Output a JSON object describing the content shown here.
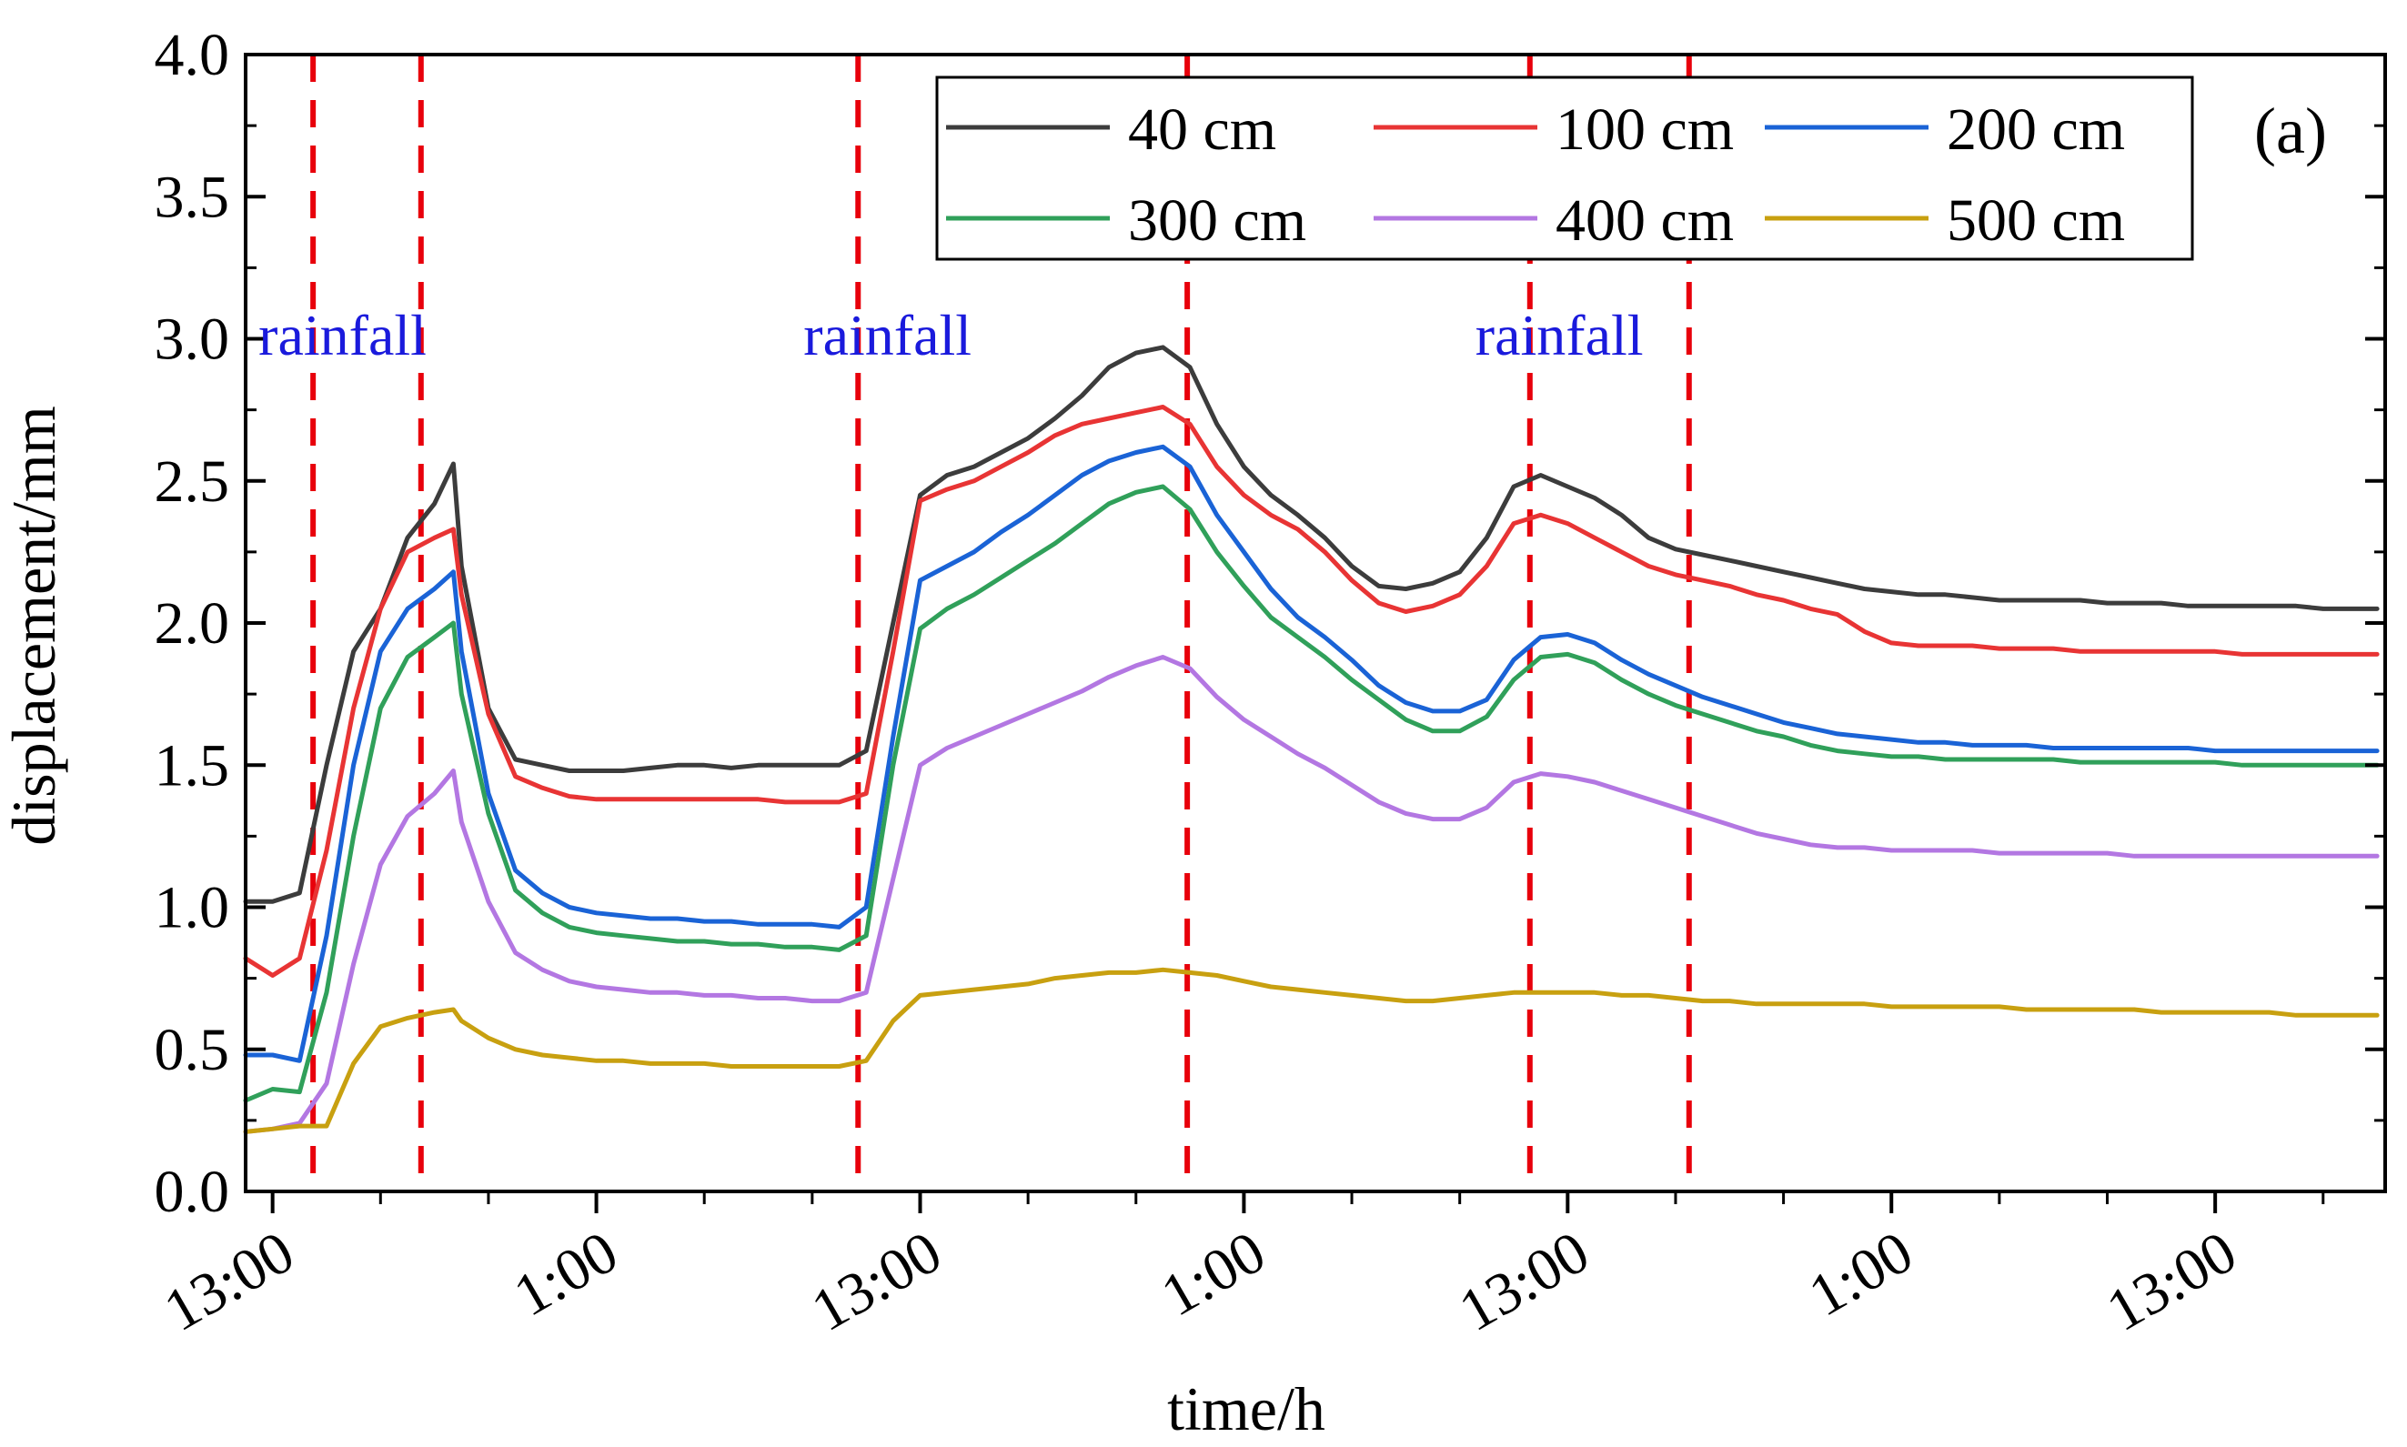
{
  "chart_data": {
    "type": "line",
    "panel_label": "(a)",
    "xlabel": "time/h",
    "ylabel": "displacement/mm",
    "xlim_hours": [
      0,
      79.3
    ],
    "ylim": [
      0,
      4.0
    ],
    "y_ticks": [
      0.0,
      0.5,
      1.0,
      1.5,
      2.0,
      2.5,
      3.0,
      3.5,
      4.0
    ],
    "y_tick_labels": [
      "0.0",
      "0.5",
      "1.0",
      "1.5",
      "2.0",
      "2.5",
      "3.0",
      "3.5",
      "4.0"
    ],
    "x_ticks": [
      {
        "hour": 1,
        "label": "13:00"
      },
      {
        "hour": 13,
        "label": "1:00"
      },
      {
        "hour": 25,
        "label": "13:00"
      },
      {
        "hour": 37,
        "label": "1:00"
      },
      {
        "hour": 49,
        "label": "13:00"
      },
      {
        "hour": 61,
        "label": "1:00"
      },
      {
        "hour": 73,
        "label": "13:00"
      }
    ],
    "minor_tick_interval_hours": 4,
    "rainfall_periods": [
      {
        "label": "rainfall",
        "start": 2.5,
        "end": 6.5
      },
      {
        "label": "rainfall",
        "start": 22.7,
        "end": 34.9
      },
      {
        "label": "rainfall",
        "start": 47.6,
        "end": 53.5
      }
    ],
    "colors": {
      "rain_line": "#e8000b",
      "rain_text": "#1a1adc",
      "axis": "#000000"
    },
    "x": [
      0,
      1,
      2,
      3,
      4,
      5,
      6,
      7,
      7.7,
      8,
      9,
      10,
      11,
      12,
      13,
      14,
      15,
      16,
      17,
      18,
      19,
      20,
      21,
      22,
      23,
      24,
      25,
      26,
      27,
      28,
      29,
      30,
      31,
      32,
      33,
      34,
      35,
      36,
      37,
      38,
      39,
      40,
      41,
      42,
      43,
      44,
      45,
      46,
      47,
      48,
      49,
      50,
      51,
      52,
      53,
      54,
      55,
      56,
      57,
      58,
      59,
      60,
      61,
      62,
      63,
      64,
      65,
      66,
      67,
      68,
      69,
      70,
      71,
      72,
      73,
      74,
      75,
      76,
      77,
      78,
      79
    ],
    "series": [
      {
        "name": "40 cm",
        "color": "#3c3c3c",
        "values": [
          1.02,
          1.02,
          1.05,
          1.5,
          1.9,
          2.05,
          2.3,
          2.42,
          2.56,
          2.2,
          1.7,
          1.52,
          1.5,
          1.48,
          1.48,
          1.48,
          1.49,
          1.5,
          1.5,
          1.49,
          1.5,
          1.5,
          1.5,
          1.5,
          1.55,
          2.0,
          2.45,
          2.52,
          2.55,
          2.6,
          2.65,
          2.72,
          2.8,
          2.9,
          2.95,
          2.97,
          2.9,
          2.7,
          2.55,
          2.45,
          2.38,
          2.3,
          2.2,
          2.13,
          2.12,
          2.14,
          2.18,
          2.3,
          2.48,
          2.52,
          2.48,
          2.44,
          2.38,
          2.3,
          2.26,
          2.24,
          2.22,
          2.2,
          2.18,
          2.16,
          2.14,
          2.12,
          2.11,
          2.1,
          2.1,
          2.09,
          2.08,
          2.08,
          2.08,
          2.08,
          2.07,
          2.07,
          2.07,
          2.06,
          2.06,
          2.06,
          2.06,
          2.06,
          2.05,
          2.05,
          2.05
        ]
      },
      {
        "name": "100 cm",
        "color": "#e83434",
        "values": [
          0.82,
          0.76,
          0.82,
          1.2,
          1.7,
          2.05,
          2.25,
          2.3,
          2.33,
          2.1,
          1.68,
          1.46,
          1.42,
          1.39,
          1.38,
          1.38,
          1.38,
          1.38,
          1.38,
          1.38,
          1.38,
          1.37,
          1.37,
          1.37,
          1.4,
          1.9,
          2.43,
          2.47,
          2.5,
          2.55,
          2.6,
          2.66,
          2.7,
          2.72,
          2.74,
          2.76,
          2.7,
          2.55,
          2.45,
          2.38,
          2.33,
          2.25,
          2.15,
          2.07,
          2.04,
          2.06,
          2.1,
          2.2,
          2.35,
          2.38,
          2.35,
          2.3,
          2.25,
          2.2,
          2.17,
          2.15,
          2.13,
          2.1,
          2.08,
          2.05,
          2.03,
          1.97,
          1.93,
          1.92,
          1.92,
          1.92,
          1.91,
          1.91,
          1.91,
          1.9,
          1.9,
          1.9,
          1.9,
          1.9,
          1.9,
          1.89,
          1.89,
          1.89,
          1.89,
          1.89,
          1.89
        ]
      },
      {
        "name": "200 cm",
        "color": "#1a63d6",
        "values": [
          0.48,
          0.48,
          0.46,
          0.9,
          1.5,
          1.9,
          2.05,
          2.12,
          2.18,
          1.9,
          1.4,
          1.13,
          1.05,
          1.0,
          0.98,
          0.97,
          0.96,
          0.96,
          0.95,
          0.95,
          0.94,
          0.94,
          0.94,
          0.93,
          1.0,
          1.6,
          2.15,
          2.2,
          2.25,
          2.32,
          2.38,
          2.45,
          2.52,
          2.57,
          2.6,
          2.62,
          2.55,
          2.38,
          2.25,
          2.12,
          2.02,
          1.95,
          1.87,
          1.78,
          1.72,
          1.69,
          1.69,
          1.73,
          1.87,
          1.95,
          1.96,
          1.93,
          1.87,
          1.82,
          1.78,
          1.74,
          1.71,
          1.68,
          1.65,
          1.63,
          1.61,
          1.6,
          1.59,
          1.58,
          1.58,
          1.57,
          1.57,
          1.57,
          1.56,
          1.56,
          1.56,
          1.56,
          1.56,
          1.56,
          1.55,
          1.55,
          1.55,
          1.55,
          1.55,
          1.55,
          1.55
        ]
      },
      {
        "name": "300 cm",
        "color": "#30a05a",
        "values": [
          0.32,
          0.36,
          0.35,
          0.7,
          1.25,
          1.7,
          1.88,
          1.95,
          2.0,
          1.75,
          1.33,
          1.06,
          0.98,
          0.93,
          0.91,
          0.9,
          0.89,
          0.88,
          0.88,
          0.87,
          0.87,
          0.86,
          0.86,
          0.85,
          0.9,
          1.5,
          1.98,
          2.05,
          2.1,
          2.16,
          2.22,
          2.28,
          2.35,
          2.42,
          2.46,
          2.48,
          2.4,
          2.25,
          2.13,
          2.02,
          1.95,
          1.88,
          1.8,
          1.73,
          1.66,
          1.62,
          1.62,
          1.67,
          1.8,
          1.88,
          1.89,
          1.86,
          1.8,
          1.75,
          1.71,
          1.68,
          1.65,
          1.62,
          1.6,
          1.57,
          1.55,
          1.54,
          1.53,
          1.53,
          1.52,
          1.52,
          1.52,
          1.52,
          1.52,
          1.51,
          1.51,
          1.51,
          1.51,
          1.51,
          1.51,
          1.5,
          1.5,
          1.5,
          1.5,
          1.5,
          1.5
        ]
      },
      {
        "name": "400 cm",
        "color": "#b377e2",
        "values": [
          0.21,
          0.22,
          0.24,
          0.38,
          0.8,
          1.15,
          1.32,
          1.4,
          1.48,
          1.3,
          1.02,
          0.84,
          0.78,
          0.74,
          0.72,
          0.71,
          0.7,
          0.7,
          0.69,
          0.69,
          0.68,
          0.68,
          0.67,
          0.67,
          0.7,
          1.1,
          1.5,
          1.56,
          1.6,
          1.64,
          1.68,
          1.72,
          1.76,
          1.81,
          1.85,
          1.88,
          1.84,
          1.74,
          1.66,
          1.6,
          1.54,
          1.49,
          1.43,
          1.37,
          1.33,
          1.31,
          1.31,
          1.35,
          1.44,
          1.47,
          1.46,
          1.44,
          1.41,
          1.38,
          1.35,
          1.32,
          1.29,
          1.26,
          1.24,
          1.22,
          1.21,
          1.21,
          1.2,
          1.2,
          1.2,
          1.2,
          1.19,
          1.19,
          1.19,
          1.19,
          1.19,
          1.18,
          1.18,
          1.18,
          1.18,
          1.18,
          1.18,
          1.18,
          1.18,
          1.18,
          1.18
        ]
      },
      {
        "name": "500 cm",
        "color": "#c8a010",
        "values": [
          0.21,
          0.22,
          0.23,
          0.23,
          0.45,
          0.58,
          0.61,
          0.63,
          0.64,
          0.6,
          0.54,
          0.5,
          0.48,
          0.47,
          0.46,
          0.46,
          0.45,
          0.45,
          0.45,
          0.44,
          0.44,
          0.44,
          0.44,
          0.44,
          0.46,
          0.6,
          0.69,
          0.7,
          0.71,
          0.72,
          0.73,
          0.75,
          0.76,
          0.77,
          0.77,
          0.78,
          0.77,
          0.76,
          0.74,
          0.72,
          0.71,
          0.7,
          0.69,
          0.68,
          0.67,
          0.67,
          0.68,
          0.69,
          0.7,
          0.7,
          0.7,
          0.7,
          0.69,
          0.69,
          0.68,
          0.67,
          0.67,
          0.66,
          0.66,
          0.66,
          0.66,
          0.66,
          0.65,
          0.65,
          0.65,
          0.65,
          0.65,
          0.64,
          0.64,
          0.64,
          0.64,
          0.64,
          0.63,
          0.63,
          0.63,
          0.63,
          0.63,
          0.62,
          0.62,
          0.62,
          0.62
        ]
      }
    ]
  }
}
